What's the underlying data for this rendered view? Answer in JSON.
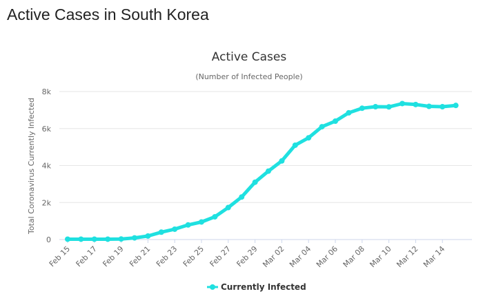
{
  "page": {
    "heading": "Active Cases in South Korea"
  },
  "chart_data": {
    "type": "line",
    "title": "Active Cases",
    "subtitle": "(Number of Infected People)",
    "xlabel": "",
    "ylabel": "Total Coronavirus Currently Infected",
    "ylim": [
      0,
      8000
    ],
    "yticks": [
      0,
      2000,
      4000,
      6000,
      8000
    ],
    "ytick_labels": [
      "0",
      "2k",
      "4k",
      "6k",
      "8k"
    ],
    "grid": true,
    "legend_position": "bottom-center",
    "categories": [
      "Feb 15",
      "Feb 16",
      "Feb 17",
      "Feb 18",
      "Feb 19",
      "Feb 20",
      "Feb 21",
      "Feb 22",
      "Feb 23",
      "Feb 24",
      "Feb 25",
      "Feb 26",
      "Feb 27",
      "Feb 28",
      "Feb 29",
      "Mar 01",
      "Mar 02",
      "Mar 03",
      "Mar 04",
      "Mar 05",
      "Mar 06",
      "Mar 07",
      "Mar 08",
      "Mar 09",
      "Mar 10",
      "Mar 11",
      "Mar 12",
      "Mar 13",
      "Mar 14",
      "Mar 15"
    ],
    "tick_labels": [
      "Feb 15",
      "Feb 17",
      "Feb 19",
      "Feb 21",
      "Feb 23",
      "Feb 25",
      "Feb 27",
      "Feb 29",
      "Mar 02",
      "Mar 04",
      "Mar 06",
      "Mar 08",
      "Mar 10",
      "Mar 12",
      "Mar 14"
    ],
    "series": [
      {
        "name": "Currently Infected",
        "color": "#1fe0e0",
        "values": [
          20,
          20,
          20,
          20,
          30,
          90,
          190,
          400,
          560,
          790,
          950,
          1230,
          1730,
          2300,
          3100,
          3700,
          4250,
          5100,
          5500,
          6100,
          6400,
          6850,
          7100,
          7180,
          7170,
          7350,
          7300,
          7200,
          7180,
          7250
        ]
      }
    ]
  }
}
